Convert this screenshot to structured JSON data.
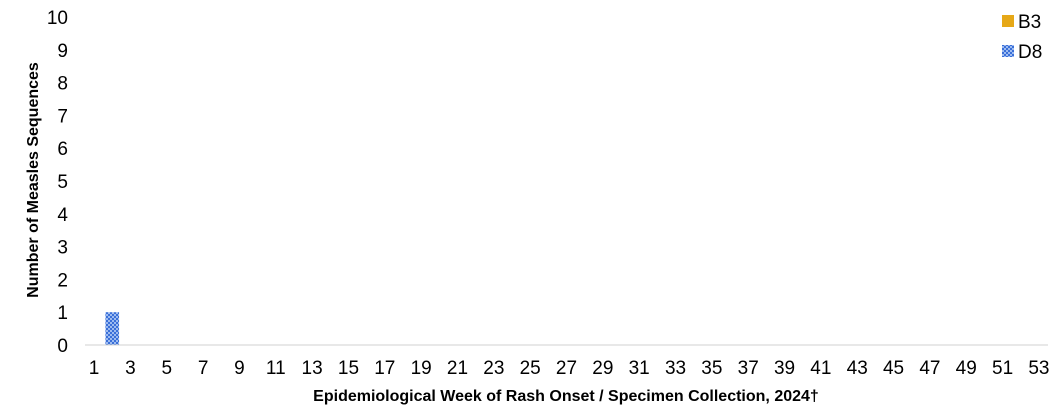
{
  "chart_data": {
    "type": "bar",
    "stacked": true,
    "title": "",
    "xlabel": "Epidemiological Week of Rash Onset / Specimen Collection, 2024†",
    "ylabel": "Number of Measles Sequences",
    "xlim": [
      1,
      53
    ],
    "ylim": [
      0,
      10
    ],
    "yticks": [
      0,
      1,
      2,
      3,
      4,
      5,
      6,
      7,
      8,
      9,
      10
    ],
    "xtick_labels": [
      "1",
      "3",
      "5",
      "7",
      "9",
      "11",
      "13",
      "15",
      "17",
      "19",
      "21",
      "23",
      "25",
      "27",
      "29",
      "31",
      "33",
      "35",
      "37",
      "39",
      "41",
      "43",
      "45",
      "47",
      "49",
      "51",
      "53"
    ],
    "grid": false,
    "legend_position": "top-right",
    "series": [
      {
        "name": "B3",
        "color": "#E6A817",
        "pattern": "solid",
        "points": []
      },
      {
        "name": "D8",
        "color": "#3A6FD8",
        "pattern": "checkered",
        "points": [
          {
            "week": 2,
            "value": 1
          }
        ]
      }
    ]
  }
}
